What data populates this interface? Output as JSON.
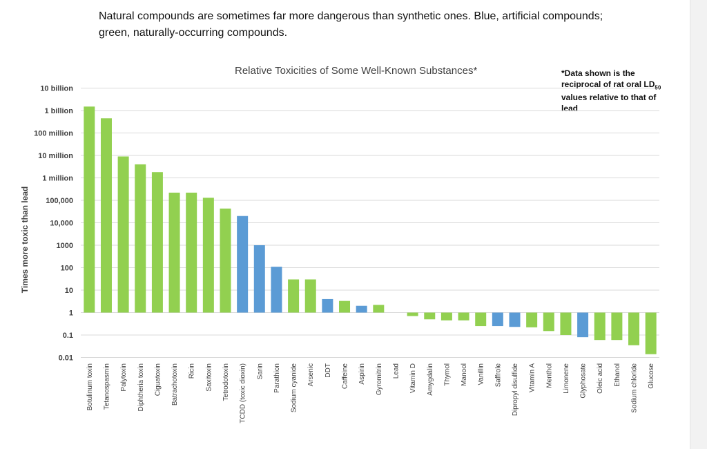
{
  "caption": "Natural compounds are sometimes far more dangerous than synthetic ones. Blue, artificial compounds; green, naturally-occurring compounds.",
  "colors": {
    "natural": "#92d050",
    "artificial": "#5b9bd5",
    "grid": "#d9d9d9",
    "text": "#404040"
  },
  "chart_data": {
    "type": "bar",
    "title": "Relative Toxicities of Some Well-Known Substances*",
    "note_prefix": "*Data shown is the reciprocal of rat oral LD",
    "note_subscript": "50",
    "note_suffix": " values relative to that of lead",
    "xlabel": "",
    "ylabel": "Times more toxic than lead",
    "yscale": "log",
    "ylim": [
      0.01,
      10000000000
    ],
    "baseline": 1,
    "grid": true,
    "yticks": [
      0.01,
      0.1,
      1,
      10,
      100,
      1000,
      10000,
      100000,
      1000000,
      10000000,
      100000000,
      1000000000,
      10000000000
    ],
    "ytick_labels": [
      "0.01",
      "0.1",
      "1",
      "10",
      "100",
      "1000",
      "10,000",
      "100,000",
      "1 million",
      "10 million",
      "100 million",
      "1 billion",
      "10 billion"
    ],
    "categories": [
      "Botulinum toxin",
      "Tetanospasmin",
      "Palytoxin",
      "Diphtheria toxin",
      "Ciguatoxin",
      "Batrachotoxin",
      "Ricin",
      "Saxitoxin",
      "Tetrodotoxin",
      "TCDD (toxic dioxin)",
      "Sarin",
      "Parathion",
      "Sodium cyanide",
      "Arsenic",
      "DDT",
      "Caffeine",
      "Aspirin",
      "Gyromitrin",
      "Lead",
      "Vitamin D",
      "Amygdalin",
      "Thymol",
      "Manool",
      "Vanillin",
      "Saffrole",
      "Dipropyl disulfide",
      "Vitamin A",
      "Menthol",
      "Limonene",
      "Glyphosate",
      "Oleic acid",
      "Ethanol",
      "Sodium chloride",
      "Glucose"
    ],
    "values": [
      1500000000,
      450000000,
      9000000,
      4000000,
      1800000,
      220000,
      220000,
      130000,
      43000,
      20000,
      1000,
      110,
      30,
      30,
      4,
      3.3,
      2,
      2.2,
      1,
      0.7,
      0.5,
      0.45,
      0.45,
      0.25,
      0.25,
      0.23,
      0.22,
      0.15,
      0.1,
      0.08,
      0.06,
      0.06,
      0.035,
      0.014
    ],
    "kind": [
      "natural",
      "natural",
      "natural",
      "natural",
      "natural",
      "natural",
      "natural",
      "natural",
      "natural",
      "artificial",
      "artificial",
      "artificial",
      "natural",
      "natural",
      "artificial",
      "natural",
      "artificial",
      "natural",
      "natural",
      "natural",
      "natural",
      "natural",
      "natural",
      "natural",
      "artificial",
      "artificial",
      "natural",
      "natural",
      "natural",
      "artificial",
      "natural",
      "natural",
      "natural",
      "natural"
    ]
  }
}
